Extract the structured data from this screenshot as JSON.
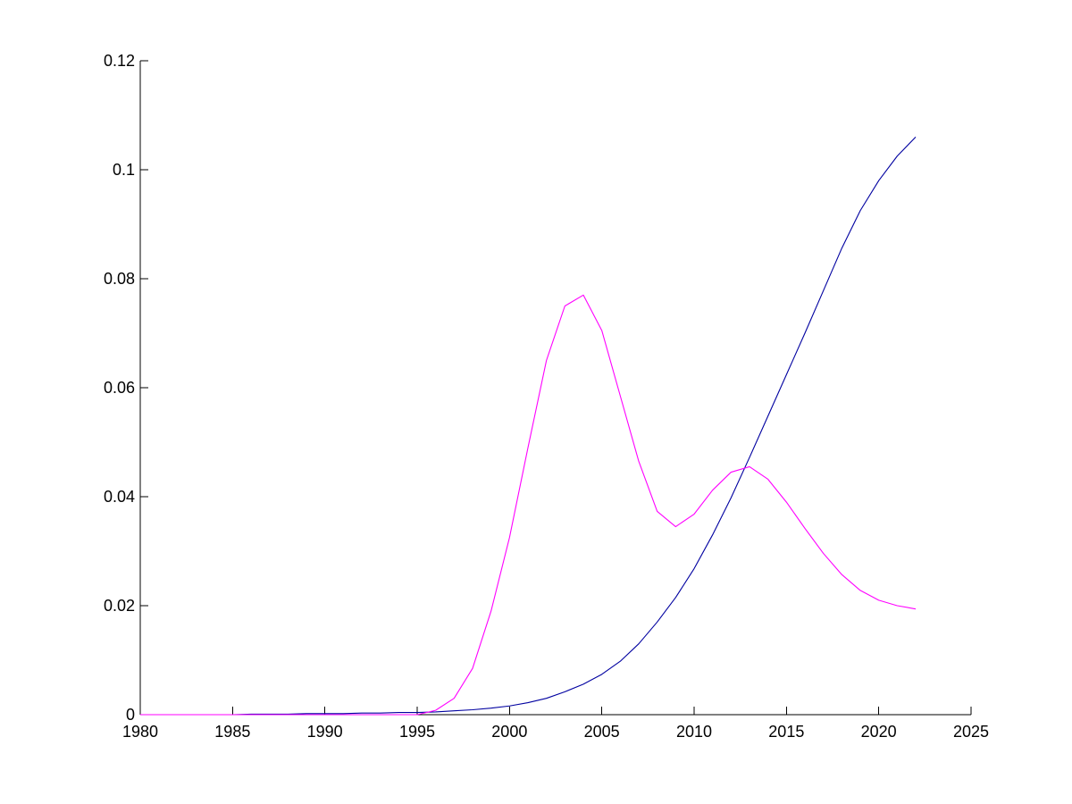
{
  "chart_data": {
    "type": "line",
    "title": "",
    "xlabel": "",
    "ylabel": "",
    "xlim": [
      1980,
      2025
    ],
    "ylim": [
      0,
      0.12
    ],
    "xticks": [
      1980,
      1985,
      1990,
      1995,
      2000,
      2005,
      2010,
      2015,
      2020,
      2025
    ],
    "xtick_labels": [
      "1980",
      "1985",
      "1990",
      "1995",
      "2000",
      "2005",
      "2010",
      "2015",
      "2020",
      "2025"
    ],
    "yticks": [
      0,
      0.02,
      0.04,
      0.06,
      0.08,
      0.1,
      0.12
    ],
    "ytick_labels": [
      "0",
      "0.02",
      "0.04",
      "0.06",
      "0.08",
      "0.1",
      "0.12"
    ],
    "grid": false,
    "legend": "none",
    "series": [
      {
        "color": "#0000a0",
        "x": [
          1980,
          1981,
          1982,
          1983,
          1984,
          1985,
          1986,
          1987,
          1988,
          1989,
          1990,
          1991,
          1992,
          1993,
          1994,
          1995,
          1996,
          1997,
          1998,
          1999,
          2000,
          2001,
          2002,
          2003,
          2004,
          2005,
          2006,
          2007,
          2008,
          2009,
          2010,
          2011,
          2012,
          2013,
          2014,
          2015,
          2016,
          2017,
          2018,
          2019,
          2020,
          2021,
          2022
        ],
        "y": [
          0.0,
          0.0,
          0.0,
          0.0,
          0.0,
          0.0,
          0.0001,
          0.0001,
          0.0001,
          0.0002,
          0.0002,
          0.0002,
          0.0003,
          0.0003,
          0.0004,
          0.0004,
          0.0005,
          0.0007,
          0.0009,
          0.0012,
          0.0016,
          0.0022,
          0.003,
          0.0042,
          0.0056,
          0.0074,
          0.0098,
          0.013,
          0.017,
          0.0215,
          0.0268,
          0.033,
          0.0398,
          0.0472,
          0.0548,
          0.0624,
          0.07,
          0.0778,
          0.0856,
          0.0925,
          0.098,
          0.1025,
          0.106
        ]
      },
      {
        "color": "#ff00ff",
        "x": [
          1980,
          1981,
          1982,
          1983,
          1984,
          1985,
          1986,
          1987,
          1988,
          1989,
          1990,
          1991,
          1992,
          1993,
          1994,
          1995,
          1996,
          1997,
          1998,
          1999,
          2000,
          2001,
          2002,
          2003,
          2004,
          2005,
          2006,
          2007,
          2008,
          2009,
          2010,
          2011,
          2012,
          2013,
          2014,
          2015,
          2016,
          2017,
          2018,
          2019,
          2020,
          2021,
          2022
        ],
        "y": [
          0.0,
          0.0,
          0.0,
          0.0,
          0.0,
          0.0,
          0.0,
          0.0,
          0.0,
          0.0,
          0.0,
          0.0,
          0.0,
          0.0,
          0.0,
          0.0,
          0.0008,
          0.003,
          0.0085,
          0.019,
          0.0325,
          0.049,
          0.065,
          0.075,
          0.077,
          0.0705,
          0.0585,
          0.0465,
          0.0373,
          0.0345,
          0.0368,
          0.0412,
          0.0445,
          0.0455,
          0.0432,
          0.039,
          0.0342,
          0.0296,
          0.0257,
          0.0228,
          0.021,
          0.02,
          0.0194
        ]
      }
    ]
  }
}
